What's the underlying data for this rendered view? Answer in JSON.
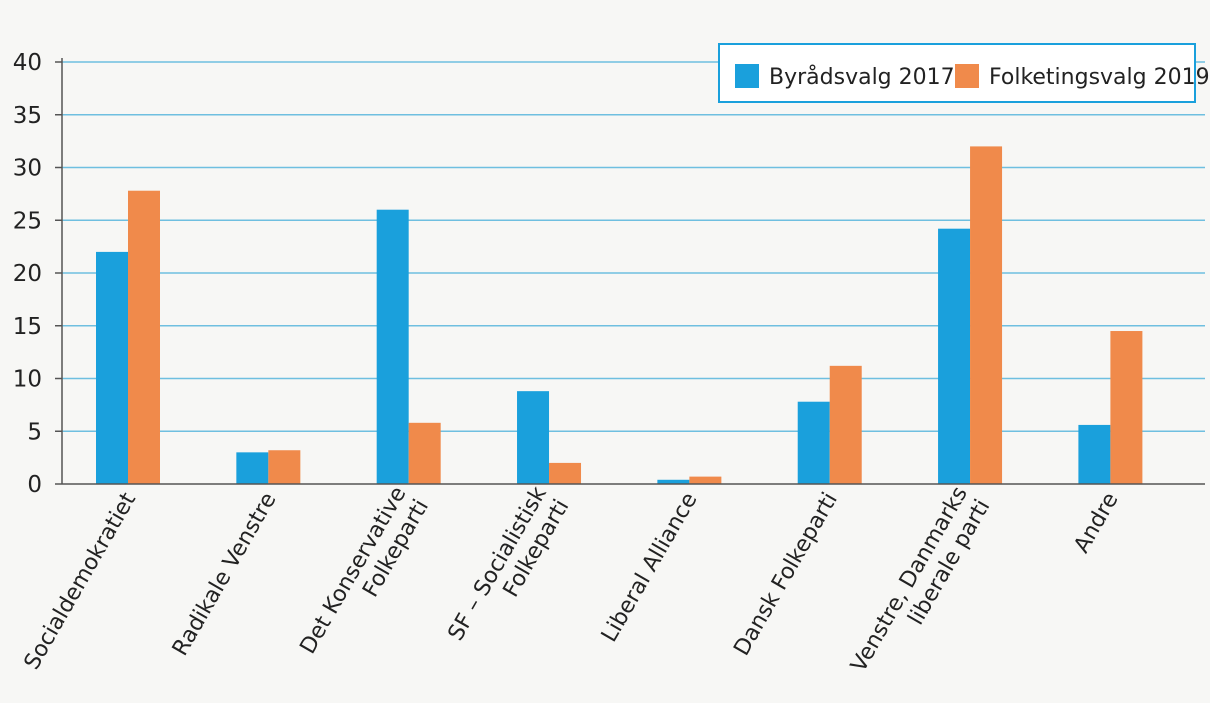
{
  "chart_data": {
    "type": "bar",
    "title": "",
    "xlabel": "",
    "ylabel": "",
    "categories": [
      "Socialdemokratiet",
      "Radikale Venstre",
      "Det Konservative Folkeparti",
      "SF – Socialistisk Folkeparti",
      "Liberal Alliance",
      "Dansk Folkeparti",
      "Venstre, Danmarks liberale parti",
      "Andre"
    ],
    "category_lines": [
      [
        "Socialdemokratiet"
      ],
      [
        "Radikale Venstre"
      ],
      [
        "Det Konservative",
        "Folkeparti"
      ],
      [
        "SF – Socialistisk",
        "Folkeparti"
      ],
      [
        "Liberal Alliance"
      ],
      [
        "Dansk Folkeparti"
      ],
      [
        "Venstre, Danmarks",
        "liberale parti"
      ],
      [
        "Andre"
      ]
    ],
    "series": [
      {
        "name": "Byrådsvalg 2017",
        "color": "#1aa0dc",
        "values": [
          22,
          3,
          26,
          8.8,
          0.4,
          7.8,
          24.2,
          5.6
        ]
      },
      {
        "name": "Folketingsvalg 2019",
        "color": "#f08a4b",
        "values": [
          27.8,
          3.2,
          5.8,
          2,
          0.7,
          11.2,
          32,
          14.5
        ]
      }
    ],
    "ylim": [
      0,
      40
    ],
    "yticks": [
      0,
      5,
      10,
      15,
      20,
      25,
      30,
      35,
      40
    ],
    "grid": true,
    "grid_color": "#6fbfe0",
    "legend_position": "top-right",
    "legend_border_color": "#1aa0dc"
  }
}
